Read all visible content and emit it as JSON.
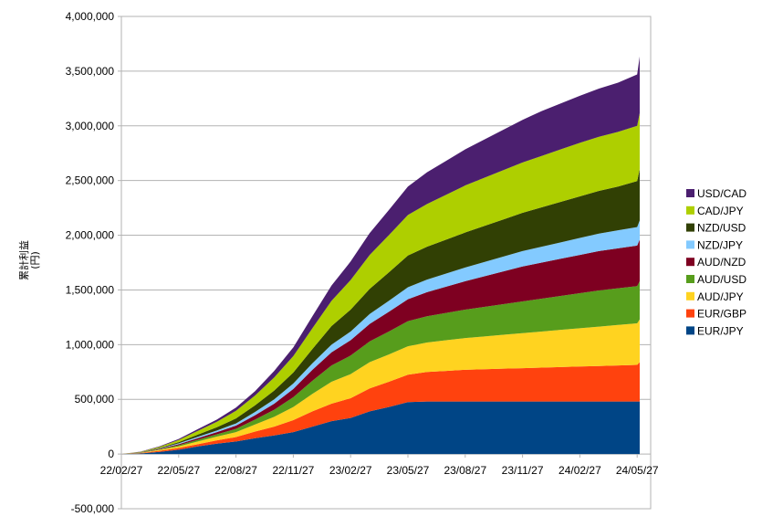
{
  "chart_data": {
    "type": "area",
    "stacked": true,
    "ylabel_line1": "累計利益",
    "ylabel_line2": "(円)",
    "ylim": [
      -500000,
      4000000
    ],
    "y_ticks": [
      "-500,000",
      "0",
      "500,000",
      "1,000,000",
      "1,500,000",
      "2,000,000",
      "2,500,000",
      "3,000,000",
      "3,500,000",
      "4,000,000"
    ],
    "y_tick_values": [
      -500000,
      0,
      500000,
      1000000,
      1500000,
      2000000,
      2500000,
      3000000,
      3500000,
      4000000
    ],
    "x_ticks": [
      "22/02/27",
      "22/05/27",
      "22/08/27",
      "22/11/27",
      "23/02/27",
      "23/05/27",
      "23/08/27",
      "23/11/27",
      "24/02/27",
      "24/05/27"
    ],
    "x": [
      "22/02/27",
      "22/03/27",
      "22/04/27",
      "22/05/27",
      "22/06/27",
      "22/07/27",
      "22/08/27",
      "22/09/27",
      "22/10/27",
      "22/11/27",
      "22/12/27",
      "23/01/27",
      "23/02/27",
      "23/03/27",
      "23/04/27",
      "23/05/27",
      "23/06/27",
      "23/07/27",
      "23/08/27",
      "23/09/27",
      "23/10/27",
      "23/11/27",
      "23/12/27",
      "24/01/27",
      "24/02/27",
      "24/03/27",
      "24/04/27",
      "24/05/27",
      "24/06/01"
    ],
    "legend_position": "right",
    "grid": true,
    "series": [
      {
        "name": "EUR/JPY",
        "color": "#004586",
        "values": [
          0,
          5000,
          20000,
          40000,
          70000,
          95000,
          115000,
          145000,
          170000,
          200000,
          250000,
          300000,
          330000,
          390000,
          430000,
          475000,
          480000,
          480000,
          480000,
          480000,
          480000,
          480000,
          480000,
          480000,
          480000,
          480000,
          480000,
          480000,
          480000
        ]
      },
      {
        "name": "EUR/GBP",
        "color": "#ff420e",
        "values": [
          0,
          3000,
          10000,
          15000,
          20000,
          30000,
          40000,
          60000,
          80000,
          110000,
          140000,
          160000,
          180000,
          210000,
          230000,
          250000,
          270000,
          280000,
          290000,
          295000,
          300000,
          305000,
          310000,
          315000,
          320000,
          325000,
          330000,
          335000,
          360000
        ]
      },
      {
        "name": "AUD/JPY",
        "color": "#ffd320",
        "values": [
          0,
          2000,
          8000,
          15000,
          25000,
          35000,
          45000,
          65000,
          90000,
          120000,
          160000,
          200000,
          220000,
          240000,
          250000,
          260000,
          270000,
          280000,
          290000,
          300000,
          310000,
          320000,
          330000,
          340000,
          350000,
          360000,
          370000,
          380000,
          390000
        ]
      },
      {
        "name": "AUD/USD",
        "color": "#579d1c",
        "values": [
          0,
          2000,
          5000,
          10000,
          15000,
          20000,
          30000,
          45000,
          65000,
          90000,
          120000,
          150000,
          170000,
          190000,
          210000,
          230000,
          240000,
          250000,
          260000,
          270000,
          280000,
          290000,
          300000,
          310000,
          320000,
          330000,
          335000,
          340000,
          350000
        ]
      },
      {
        "name": "AUD/NZD",
        "color": "#7e0021",
        "values": [
          0,
          2000,
          5000,
          10000,
          15000,
          20000,
          30000,
          40000,
          55000,
          75000,
          100000,
          120000,
          140000,
          160000,
          180000,
          200000,
          220000,
          240000,
          260000,
          280000,
          300000,
          320000,
          330000,
          340000,
          350000,
          360000,
          365000,
          370000,
          380000
        ]
      },
      {
        "name": "NZD/JPY",
        "color": "#83caff",
        "values": [
          0,
          1000,
          3000,
          8000,
          12000,
          15000,
          20000,
          30000,
          40000,
          50000,
          60000,
          70000,
          80000,
          90000,
          100000,
          110000,
          115000,
          120000,
          125000,
          130000,
          135000,
          140000,
          145000,
          150000,
          155000,
          160000,
          165000,
          170000,
          175000
        ]
      },
      {
        "name": "NZD/USD",
        "color": "#314004",
        "values": [
          0,
          2000,
          5000,
          10000,
          20000,
          30000,
          45000,
          60000,
          80000,
          100000,
          130000,
          170000,
          200000,
          230000,
          260000,
          290000,
          300000,
          310000,
          320000,
          330000,
          340000,
          350000,
          360000,
          370000,
          380000,
          390000,
          400000,
          420000,
          470000
        ]
      },
      {
        "name": "CAD/JPY",
        "color": "#aecf00",
        "values": [
          0,
          3000,
          10000,
          20000,
          35000,
          50000,
          70000,
          90000,
          120000,
          150000,
          190000,
          230000,
          270000,
          310000,
          340000,
          370000,
          390000,
          410000,
          430000,
          440000,
          450000,
          460000,
          470000,
          480000,
          490000,
          495000,
          500000,
          505000,
          510000
        ]
      },
      {
        "name": "USD/CAD",
        "color": "#4b1f6f",
        "values": [
          0,
          2000,
          5000,
          10000,
          15000,
          20000,
          30000,
          40000,
          60000,
          80000,
          110000,
          140000,
          170000,
          200000,
          230000,
          260000,
          290000,
          310000,
          330000,
          350000,
          370000,
          390000,
          410000,
          420000,
          430000,
          440000,
          450000,
          470000,
          520000
        ]
      }
    ]
  }
}
